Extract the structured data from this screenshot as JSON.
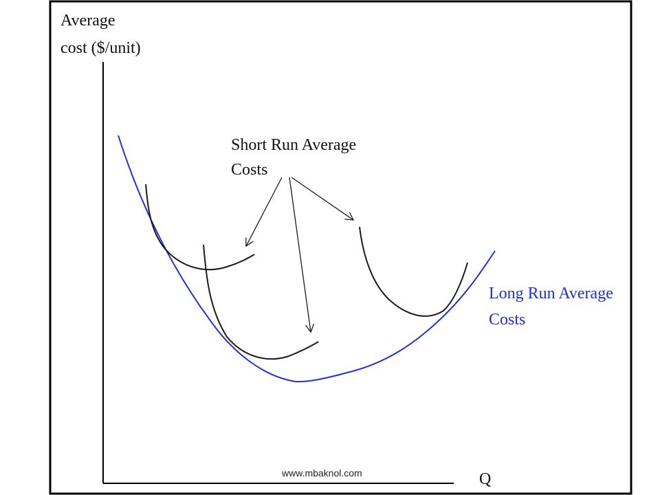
{
  "y_axis_label": {
    "line1": "Average",
    "line2": "cost ($/unit)"
  },
  "x_axis_label": "Q",
  "short_run_label": {
    "line1": "Short Run Average",
    "line2": "Costs"
  },
  "long_run_label": {
    "line1": "Long Run Average",
    "line2": "Costs"
  },
  "watermark": "www.mbaknol.com",
  "colors": {
    "long_run": "#1f2fd6",
    "short_run": "#1a1a1a",
    "axes": "#000000"
  }
}
